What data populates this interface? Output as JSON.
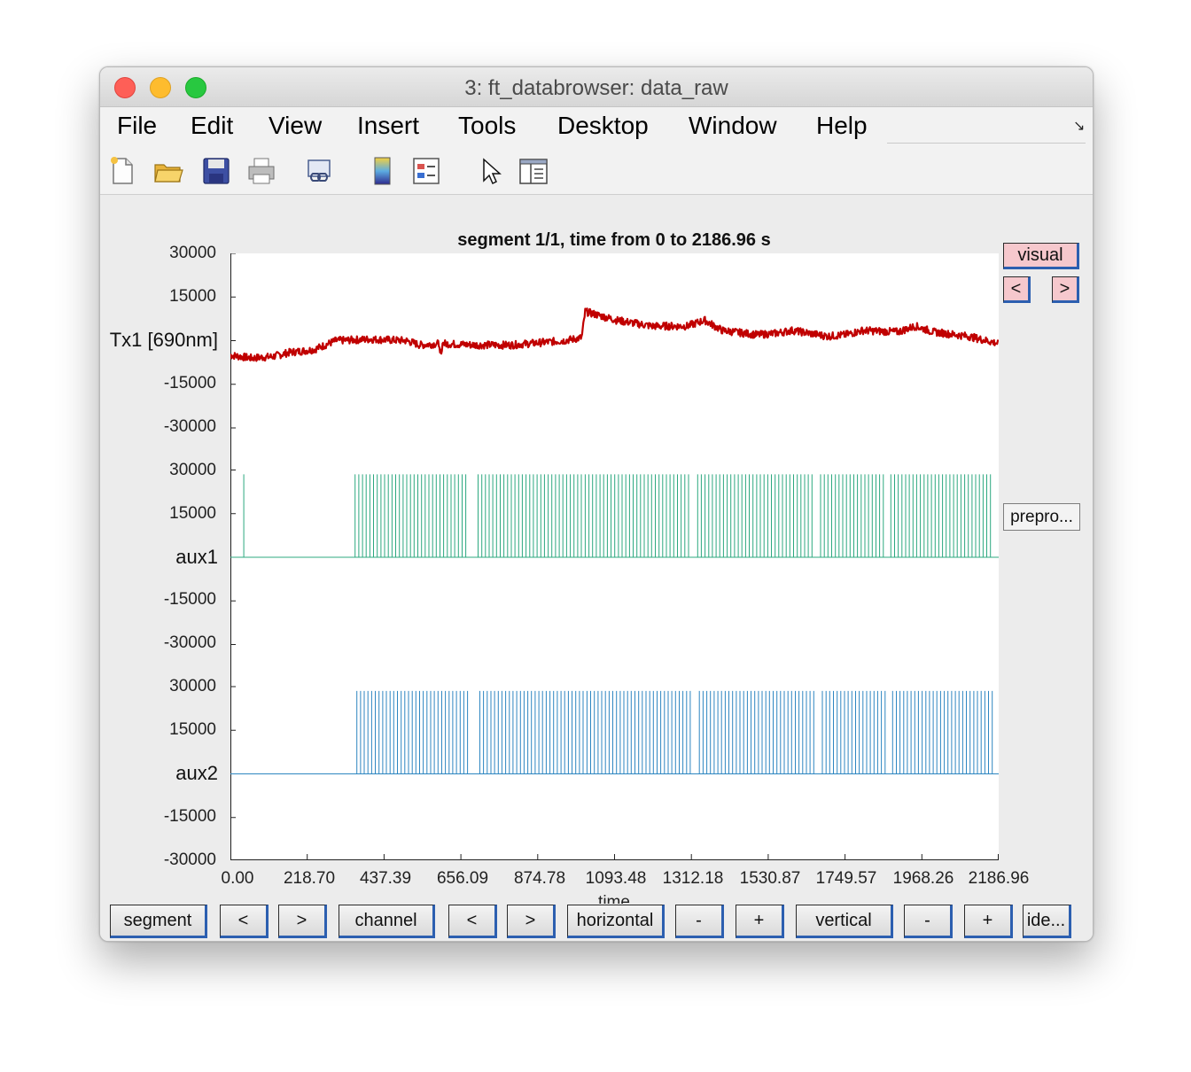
{
  "window": {
    "title": "3: ft_databrowser: data_raw"
  },
  "menu": [
    "File",
    "Edit",
    "View",
    "Insert",
    "Tools",
    "Desktop",
    "Window",
    "Help"
  ],
  "toolbar_icons": [
    "new-file-icon",
    "open-folder-icon",
    "save-icon",
    "print-icon",
    "link-plot-icon",
    "colorbar-icon",
    "legend-icon",
    "cursor-icon",
    "property-inspector-icon"
  ],
  "plot": {
    "title": "segment 1/1, time from 0 to 2186.96 s",
    "xlabel": "time"
  },
  "chart_data": {
    "type": "line",
    "title": "segment 1/1, time from 0 to 2186.96 s",
    "xlabel": "time",
    "xlim": [
      0,
      2186.96
    ],
    "xticks": [
      "0.00",
      "218.70",
      "437.39",
      "656.09",
      "874.78",
      "1093.48",
      "1312.18",
      "1530.87",
      "1749.57",
      "1968.26",
      "2186.96"
    ],
    "channels": [
      {
        "name": "Tx1 [690nm]",
        "color": "#c00000",
        "ticks_above": [
          "30000",
          "15000"
        ],
        "ticks_below": [
          "-15000",
          "-30000"
        ],
        "ylim": [
          -30000,
          30000
        ],
        "x": [
          0,
          60,
          120,
          170,
          210,
          240,
          300,
          400,
          500,
          540,
          600,
          700,
          800,
          900,
          950,
          1000,
          1010,
          1100,
          1200,
          1300,
          1350,
          1400,
          1500,
          1550,
          1600,
          1700,
          1750,
          1800,
          1900,
          1950,
          2000,
          2100,
          2186.96
        ],
        "y": [
          -5000,
          -6000,
          -5500,
          -4000,
          -3500,
          -3000,
          0,
          500,
          0,
          -1500,
          -1000,
          -1500,
          -1500,
          -500,
          0,
          1000,
          10000,
          7000,
          5000,
          5000,
          7000,
          3500,
          2000,
          2500,
          3500,
          1500,
          2000,
          3500,
          3000,
          5000,
          3000,
          1500,
          -1000
        ]
      },
      {
        "name": "aux1",
        "color": "#2ca87f",
        "ticks_above": [
          "30000",
          "15000"
        ],
        "ticks_below": [
          "-15000",
          "-30000"
        ],
        "baseline": 0,
        "pulse_height": 28500,
        "first_pulse": 38,
        "pulse_trains": [
          [
            355,
            680
          ],
          [
            705,
            1000
          ],
          [
            1010,
            1310
          ],
          [
            1330,
            1660
          ],
          [
            1680,
            1860
          ],
          [
            1880,
            2170
          ]
        ]
      },
      {
        "name": "aux2",
        "color": "#2e86c1",
        "ticks_above": [
          "30000",
          "15000"
        ],
        "ticks_below": [
          "-15000",
          "-30000"
        ],
        "baseline": 0,
        "pulse_height": 28500,
        "pulse_trains": [
          [
            360,
            685
          ],
          [
            710,
            1005
          ],
          [
            1015,
            1315
          ],
          [
            1335,
            1665
          ],
          [
            1685,
            1865
          ],
          [
            1885,
            2172
          ]
        ]
      }
    ]
  },
  "side_buttons": {
    "visual": "visual",
    "prev": "<",
    "next": ">",
    "preproc": "prepro..."
  },
  "bottom_buttons": [
    "segment",
    "<",
    ">",
    "channel",
    "<",
    ">",
    "horizontal",
    "-",
    "+",
    "vertical",
    "-",
    "+",
    "ide..."
  ]
}
